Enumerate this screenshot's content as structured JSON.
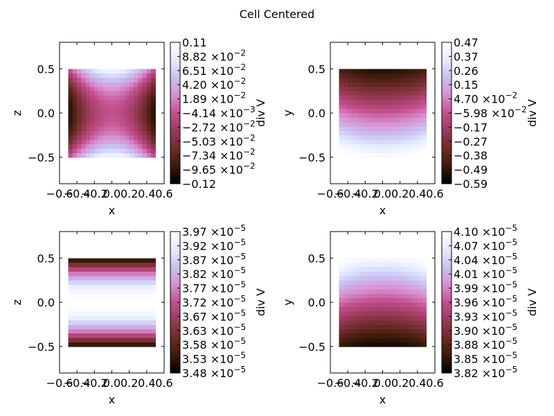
{
  "figure": {
    "title": "Cell Centered"
  },
  "chart_data": [
    {
      "type": "heatmap",
      "title": "",
      "xlabel": "x",
      "ylabel": "z",
      "xlim": [
        -0.6,
        0.6
      ],
      "ylim": [
        -0.8,
        0.8
      ],
      "data_extent": {
        "x": [
          -0.5,
          0.5
        ],
        "y": [
          -0.5,
          0.5
        ]
      },
      "pattern": "saddle",
      "x_ticks": [
        "−0.6",
        "−0.4",
        "−0.2",
        "0.0",
        "0.2",
        "0.4",
        "0.6"
      ],
      "y_ticks": [
        "0.5",
        "0.0",
        "−0.5"
      ],
      "colorbar": {
        "label": "div V",
        "ticks": [
          {
            "m": "0.11",
            "e": ""
          },
          {
            "m": "8.82",
            "e": "−2"
          },
          {
            "m": "6.51",
            "e": "−2"
          },
          {
            "m": "4.20",
            "e": "−2"
          },
          {
            "m": "1.89",
            "e": "−2"
          },
          {
            "m": "−4.14",
            "e": "−3"
          },
          {
            "m": "−2.72",
            "e": "−2"
          },
          {
            "m": "−5.03",
            "e": "−2"
          },
          {
            "m": "−7.34",
            "e": "−2"
          },
          {
            "m": "−9.65",
            "e": "−2"
          },
          {
            "m": "−0.12",
            "e": ""
          }
        ]
      }
    },
    {
      "type": "heatmap",
      "title": "",
      "xlabel": "x",
      "ylabel": "y",
      "xlim": [
        -0.6,
        0.6
      ],
      "ylim": [
        -0.8,
        0.8
      ],
      "data_extent": {
        "x": [
          -0.5,
          0.5
        ],
        "y": [
          -0.5,
          0.5
        ]
      },
      "pattern": "arch_dark_top",
      "x_ticks": [
        "−0.6",
        "−0.4",
        "−0.2",
        "0.0",
        "0.2",
        "0.4",
        "0.6"
      ],
      "y_ticks": [
        "0.5",
        "0.0",
        "−0.5"
      ],
      "colorbar": {
        "label": "div V",
        "ticks": [
          {
            "m": "0.47",
            "e": ""
          },
          {
            "m": "0.37",
            "e": ""
          },
          {
            "m": "0.26",
            "e": ""
          },
          {
            "m": "0.15",
            "e": ""
          },
          {
            "m": "4.70",
            "e": "−2"
          },
          {
            "m": "−5.98",
            "e": "−2"
          },
          {
            "m": "−0.17",
            "e": ""
          },
          {
            "m": "−0.27",
            "e": ""
          },
          {
            "m": "−0.38",
            "e": ""
          },
          {
            "m": "−0.49",
            "e": ""
          },
          {
            "m": "−0.59",
            "e": ""
          }
        ]
      }
    },
    {
      "type": "heatmap",
      "title": "",
      "xlabel": "x",
      "ylabel": "z",
      "xlim": [
        -0.6,
        0.6
      ],
      "ylim": [
        -0.8,
        0.8
      ],
      "data_extent": {
        "x": [
          -0.5,
          0.5
        ],
        "y": [
          -0.5,
          0.5
        ]
      },
      "pattern": "bands_bright_center",
      "x_ticks": [
        "−0.6",
        "−0.4",
        "−0.2",
        "0.0",
        "0.2",
        "0.4",
        "0.6"
      ],
      "y_ticks": [
        "0.5",
        "0.0",
        "−0.5"
      ],
      "colorbar": {
        "label": "div V",
        "ticks": [
          {
            "m": "3.97",
            "e": "−5"
          },
          {
            "m": "3.92",
            "e": "−5"
          },
          {
            "m": "3.87",
            "e": "−5"
          },
          {
            "m": "3.82",
            "e": "−5"
          },
          {
            "m": "3.77",
            "e": "−5"
          },
          {
            "m": "3.72",
            "e": "−5"
          },
          {
            "m": "3.67",
            "e": "−5"
          },
          {
            "m": "3.63",
            "e": "−5"
          },
          {
            "m": "3.58",
            "e": "−5"
          },
          {
            "m": "3.53",
            "e": "−5"
          },
          {
            "m": "3.48",
            "e": "−5"
          }
        ]
      }
    },
    {
      "type": "heatmap",
      "title": "",
      "xlabel": "x",
      "ylabel": "y",
      "xlim": [
        -0.6,
        0.6
      ],
      "ylim": [
        -0.8,
        0.8
      ],
      "data_extent": {
        "x": [
          -0.5,
          0.5
        ],
        "y": [
          -0.5,
          0.5
        ]
      },
      "pattern": "arch_dark_bottom",
      "x_ticks": [
        "−0.6",
        "−0.4",
        "−0.2",
        "0.0",
        "0.2",
        "0.4",
        "0.6"
      ],
      "y_ticks": [
        "0.5",
        "0.0",
        "−0.5"
      ],
      "colorbar": {
        "label": "div V",
        "ticks": [
          {
            "m": "4.10",
            "e": "−5"
          },
          {
            "m": "4.07",
            "e": "−5"
          },
          {
            "m": "4.04",
            "e": "−5"
          },
          {
            "m": "4.01",
            "e": "−5"
          },
          {
            "m": "3.99",
            "e": "−5"
          },
          {
            "m": "3.96",
            "e": "−5"
          },
          {
            "m": "3.93",
            "e": "−5"
          },
          {
            "m": "3.90",
            "e": "−5"
          },
          {
            "m": "3.88",
            "e": "−5"
          },
          {
            "m": "3.85",
            "e": "−5"
          },
          {
            "m": "3.82",
            "e": "−5"
          }
        ]
      }
    }
  ],
  "colormap": {
    "name": "cubehelix-like",
    "stops": [
      "#000000",
      "#3a1a0a",
      "#6e2a28",
      "#9a3a5a",
      "#c24f8c",
      "#d98fd0",
      "#c9c0f2",
      "#e6eeff",
      "#ffffff"
    ]
  }
}
